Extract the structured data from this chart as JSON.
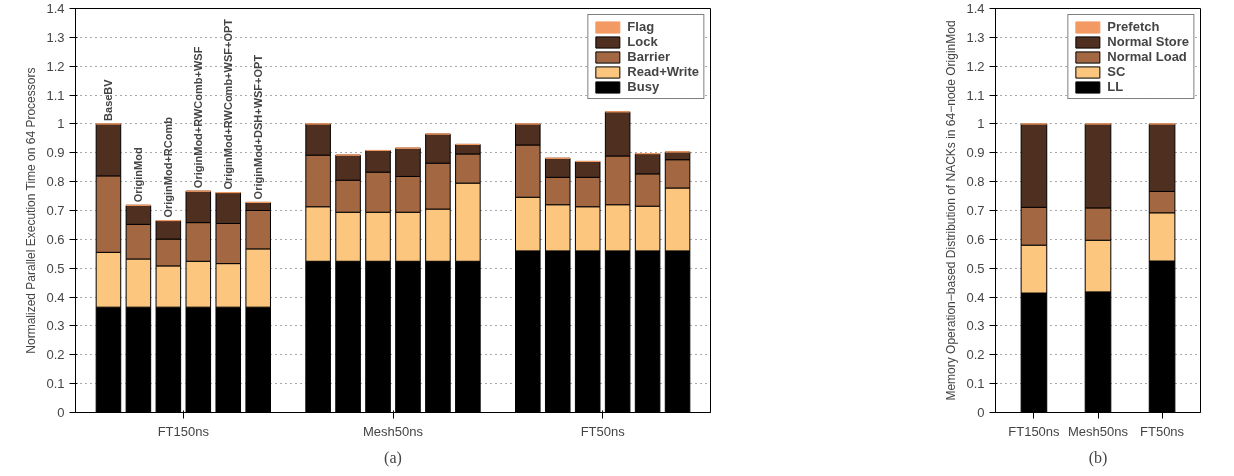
{
  "chart_data": [
    {
      "type": "bar",
      "stacked": true,
      "categories": [
        "BaseBV",
        "OriginMod",
        "OriginMod+RComb",
        "OriginMod+RWComb+WSF",
        "OriginMod+RWComb+WSF+OPT",
        "OriginMod+DSH+WSF+OPT",
        null,
        null,
        null,
        null,
        null,
        null,
        null,
        null,
        null,
        null,
        null,
        null,
        null,
        null
      ],
      "ylim": [
        0,
        1.4
      ],
      "yticks": [
        0,
        0.1,
        0.2,
        0.3,
        0.4,
        0.5,
        0.6,
        0.7,
        0.8,
        0.9,
        1,
        1.1,
        1.2,
        1.3,
        1.4
      ],
      "ylabel": "Normalized Parallel Execution Time on 64 Processors",
      "grid": "y",
      "legend": "top right",
      "series": [
        {
          "name": "Busy",
          "color": "#000000",
          "values": [
            0.365,
            0.365,
            0.365,
            0.365,
            0.365,
            0.365,
            null,
            0.524,
            0.524,
            0.524,
            0.524,
            0.524,
            0.524,
            null,
            0.56,
            0.56,
            0.56,
            0.56,
            0.56,
            0.56
          ]
        },
        {
          "name": "Read+Write",
          "color": "#fdc67f",
          "values": [
            0.19,
            0.167,
            0.143,
            0.159,
            0.151,
            0.202,
            null,
            0.189,
            0.17,
            0.17,
            0.17,
            0.181,
            0.271,
            null,
            0.186,
            0.16,
            0.153,
            0.16,
            0.155,
            0.218
          ]
        },
        {
          "name": "Barrier",
          "color": "#a36842",
          "values": [
            0.265,
            0.12,
            0.093,
            0.134,
            0.139,
            0.133,
            null,
            0.179,
            0.111,
            0.139,
            0.124,
            0.159,
            0.101,
            null,
            0.181,
            0.095,
            0.102,
            0.169,
            0.112,
            0.098
          ]
        },
        {
          "name": "Lock",
          "color": "#4f2f20",
          "values": [
            0.18,
            0.066,
            0.064,
            0.109,
            0.107,
            0.028,
            null,
            0.108,
            0.087,
            0.075,
            0.098,
            0.101,
            0.033,
            null,
            0.073,
            0.066,
            0.055,
            0.153,
            0.07,
            0.027
          ]
        },
        {
          "name": "Flag",
          "color": "#f39a64",
          "values": [
            0,
            0,
            0,
            0,
            0,
            0,
            null,
            0,
            0,
            0,
            0,
            0,
            0,
            null,
            0,
            0,
            0,
            0,
            0,
            0
          ]
        }
      ],
      "annotations": [
        "FT150ns",
        "Mesh50ns",
        "FT50ns",
        "(a)"
      ]
    },
    {
      "type": "bar",
      "stacked": true,
      "categories": [
        "FT150ns",
        "Mesh50ns",
        "FT50ns"
      ],
      "ylim": [
        0,
        1.4
      ],
      "yticks": [
        0,
        0.1,
        0.2,
        0.3,
        0.4,
        0.5,
        0.6,
        0.7,
        0.8,
        0.9,
        1,
        1.1,
        1.2,
        1.3,
        1.4
      ],
      "ylabel": "Memory Operation−based Distribution of NACKs in 64−node OriginMod",
      "grid": "y",
      "legend": "top right",
      "series": [
        {
          "name": "LL",
          "color": "#000000",
          "values": [
            0.414,
            0.418,
            0.525
          ]
        },
        {
          "name": "SC",
          "color": "#fdc67f",
          "values": [
            0.166,
            0.179,
            0.167
          ]
        },
        {
          "name": "Normal Load",
          "color": "#a36842",
          "values": [
            0.131,
            0.112,
            0.074
          ]
        },
        {
          "name": "Normal Store",
          "color": "#4f2f20",
          "values": [
            0.289,
            0.291,
            0.234
          ]
        },
        {
          "name": "Prefetch",
          "color": "#f39a64",
          "values": [
            0,
            0,
            0
          ]
        }
      ],
      "annotations": [
        "(b)"
      ]
    }
  ]
}
